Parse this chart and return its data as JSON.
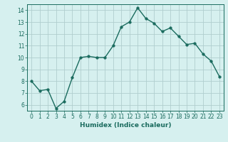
{
  "x": [
    0,
    1,
    2,
    3,
    4,
    5,
    6,
    7,
    8,
    9,
    10,
    11,
    12,
    13,
    14,
    15,
    16,
    17,
    18,
    19,
    20,
    21,
    22,
    23
  ],
  "y": [
    8.0,
    7.2,
    7.3,
    5.7,
    6.3,
    8.3,
    10.0,
    10.1,
    10.0,
    10.0,
    11.0,
    12.6,
    13.0,
    14.2,
    13.3,
    12.9,
    12.2,
    12.5,
    11.8,
    11.1,
    11.2,
    10.3,
    9.7,
    8.4
  ],
  "line_color": "#1a6b5e",
  "bg_color": "#d6f0ef",
  "grid_color": "#b0cece",
  "xlabel": "Humidex (Indice chaleur)",
  "xlim": [
    -0.5,
    23.5
  ],
  "ylim": [
    5.5,
    14.5
  ],
  "yticks": [
    6,
    7,
    8,
    9,
    10,
    11,
    12,
    13,
    14
  ],
  "xticks": [
    0,
    1,
    2,
    3,
    4,
    5,
    6,
    7,
    8,
    9,
    10,
    11,
    12,
    13,
    14,
    15,
    16,
    17,
    18,
    19,
    20,
    21,
    22,
    23
  ],
  "marker_size": 2.5,
  "line_width": 1.0,
  "tick_fontsize": 5.5,
  "xlabel_fontsize": 6.5
}
